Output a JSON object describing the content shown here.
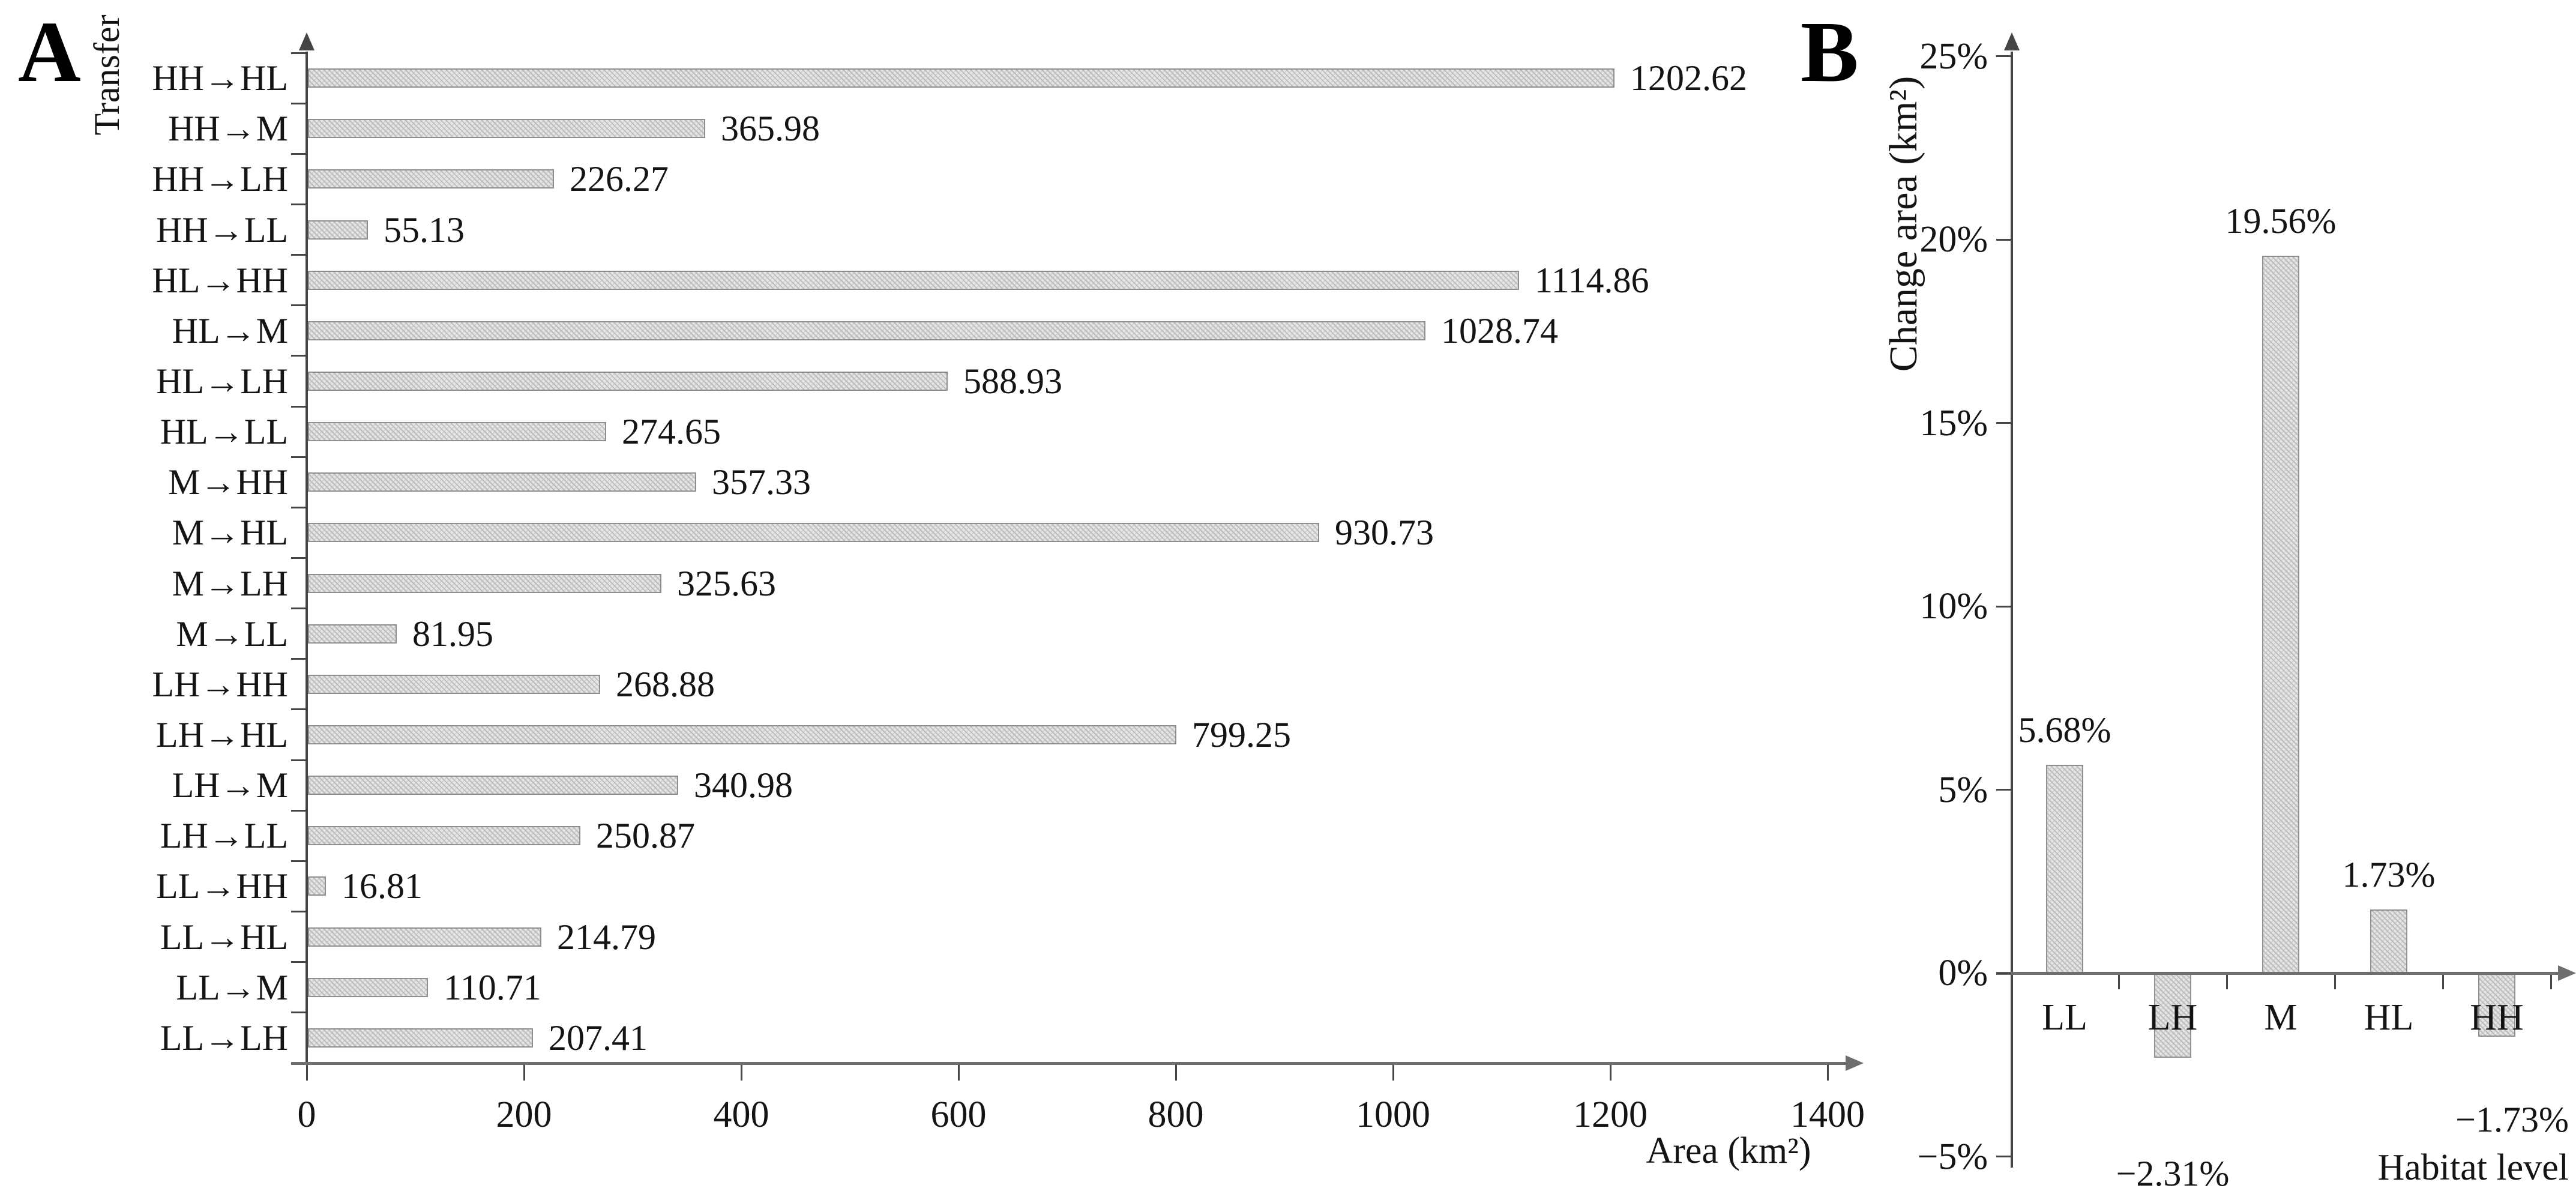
{
  "figure": {
    "panel_a": {
      "letter": "A"
    },
    "panel_b": {
      "letter": "B"
    }
  },
  "chart_data": [
    {
      "panel": "A",
      "type": "bar",
      "orientation": "horizontal",
      "ylabel": "Transfer",
      "xlabel": "Area (km²)",
      "xlim": [
        0,
        1400
      ],
      "xticks": [
        0,
        200,
        400,
        600,
        800,
        1000,
        1200,
        1400
      ],
      "grid": false,
      "categories": [
        "HH→HL",
        "HH→M",
        "HH→LH",
        "HH→LL",
        "HL→HH",
        "HL→M",
        "HL→LH",
        "HL→LL",
        "M→HH",
        "M→HL",
        "M→LH",
        "M→LL",
        "LH→HH",
        "LH→HL",
        "LH→M",
        "LH→LL",
        "LL→HH",
        "LL→HL",
        "LL→M",
        "LL→LH"
      ],
      "values": [
        1202.62,
        365.98,
        226.27,
        55.13,
        1114.86,
        1028.74,
        588.93,
        274.65,
        357.33,
        930.73,
        325.63,
        81.95,
        268.88,
        799.25,
        340.98,
        250.87,
        16.81,
        214.79,
        110.71,
        207.41
      ],
      "value_labels": [
        "1202.62",
        "365.98",
        "226.27",
        "55.13",
        "1114.86",
        "1028.74",
        "588.93",
        "274.65",
        "357.33",
        "930.73",
        "325.63",
        "81.95",
        "268.88",
        "799.25",
        "340.98",
        "250.87",
        "16.81",
        "214.79",
        "110.71",
        "207.41"
      ]
    },
    {
      "panel": "B",
      "type": "bar",
      "orientation": "vertical",
      "ylabel": "Change area (km²)",
      "xlabel": "Habitat level",
      "ylim": [
        -5,
        25
      ],
      "yticks": [
        {
          "value": 25,
          "label": "25%"
        },
        {
          "value": 20,
          "label": "20%"
        },
        {
          "value": 15,
          "label": "15%"
        },
        {
          "value": 10,
          "label": "10%"
        },
        {
          "value": 5,
          "label": "5%"
        },
        {
          "value": 0,
          "label": "0%"
        },
        {
          "value": -5,
          "label": "−5%"
        }
      ],
      "grid": false,
      "categories": [
        "LL",
        "LH",
        "M",
        "HL",
        "HH"
      ],
      "values": [
        5.68,
        -2.31,
        19.56,
        1.73,
        -1.73
      ],
      "value_labels": [
        "5.68%",
        "−2.31%",
        "19.56%",
        "1.73%",
        "−1.73%"
      ]
    }
  ]
}
